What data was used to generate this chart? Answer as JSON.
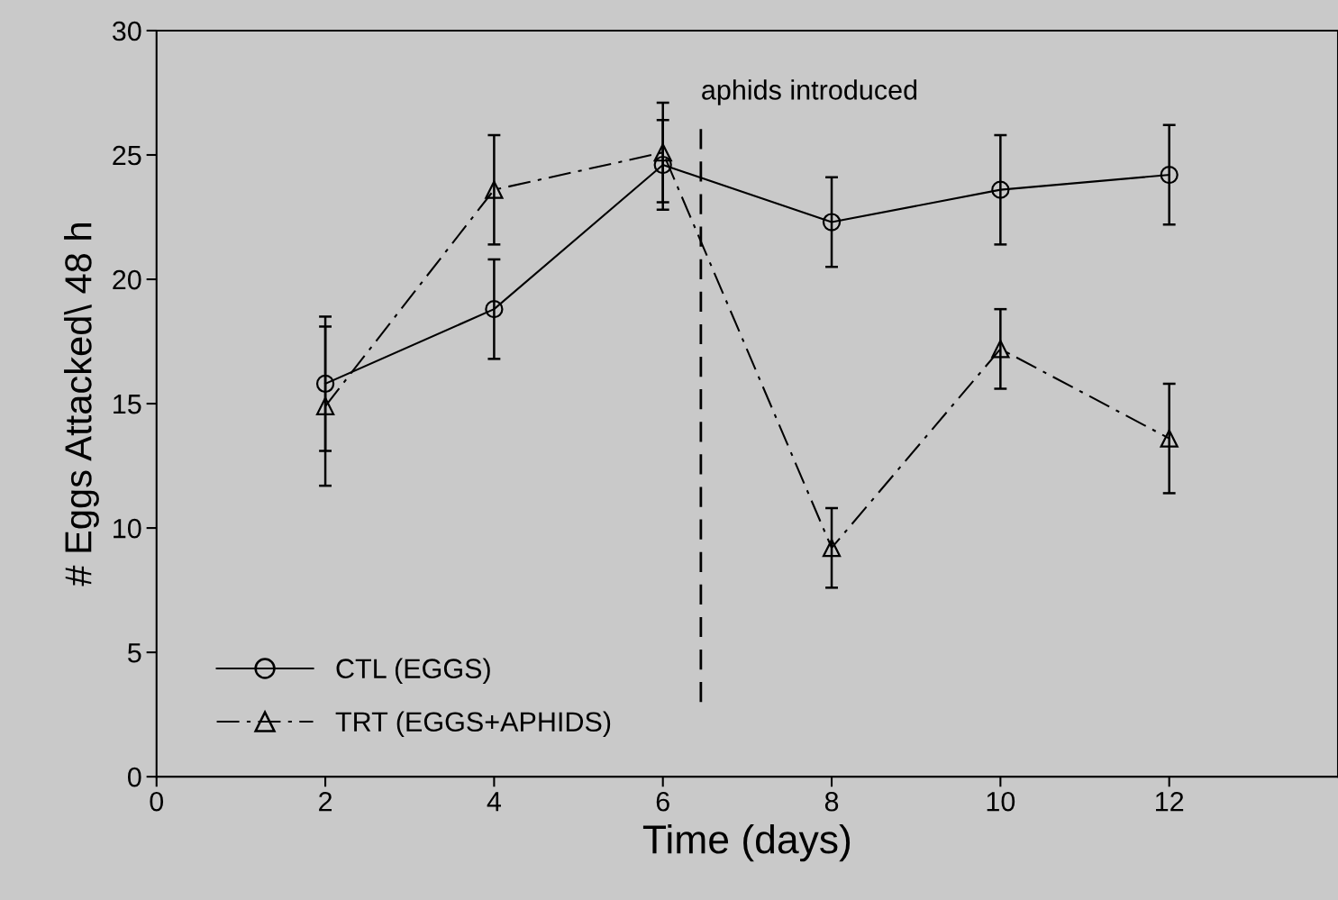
{
  "chart_data": {
    "type": "line",
    "xlabel": "Time (days)",
    "ylabel": "# Eggs Attacked\\ 48 h",
    "x": [
      2,
      4,
      6,
      8,
      10,
      12
    ],
    "series": [
      {
        "name": "CTL (EGGS)",
        "color": "#000000",
        "marker": "circle",
        "line_style": "solid",
        "values": [
          15.8,
          18.8,
          24.6,
          22.3,
          23.6,
          24.2
        ],
        "errors": [
          2.7,
          2.0,
          1.8,
          1.8,
          2.2,
          2.0
        ]
      },
      {
        "name": "TRT (EGGS+APHIDS)",
        "color": "#000000",
        "marker": "triangle",
        "line_style": "dashdot",
        "values": [
          14.9,
          23.6,
          25.1,
          9.2,
          17.2,
          13.6
        ],
        "errors": [
          3.2,
          2.2,
          2.0,
          1.6,
          1.6,
          2.2
        ]
      }
    ],
    "xlim": [
      0,
      14
    ],
    "xticks": [
      0,
      2,
      4,
      6,
      8,
      10,
      12
    ],
    "ylim": [
      0,
      30
    ],
    "yticks": [
      0,
      5,
      10,
      15,
      20,
      25,
      30
    ],
    "ref_lines": [
      {
        "axis": "x",
        "value": 6.45,
        "label": "aphids introduced",
        "line_style": "dashed",
        "color": "#000000"
      }
    ],
    "legend": "bottom left",
    "grid": false
  }
}
